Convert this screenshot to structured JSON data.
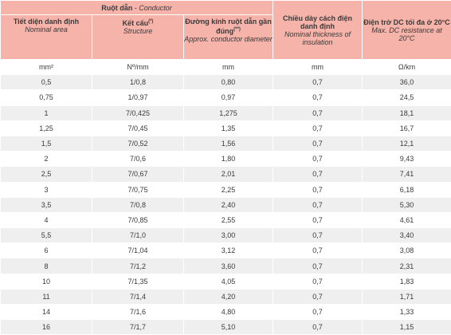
{
  "header": {
    "conductor_group": {
      "vi": "Ruột dẫn",
      "sep": " - ",
      "en": "Conductor"
    },
    "columns": [
      {
        "vi": "Tiết diện danh định",
        "en": "Nominal area",
        "sup": ""
      },
      {
        "vi": "Kết cấu",
        "en": "Structure",
        "sup": "(*)"
      },
      {
        "vi": "Đường kính ruột dẫn gần đúng",
        "en": "Approx. conductor diameter",
        "sup": "(**)"
      },
      {
        "vi": "Chiều dày cách điện danh định",
        "en": "Nominal thickness of insulation",
        "sup": ""
      },
      {
        "vi": "Điện trở DC tối đa ở 20°C",
        "en": "Max. DC resistance at 20°C",
        "sup": ""
      }
    ]
  },
  "units": [
    "mm²",
    "Nº/mm",
    "mm",
    "mm",
    "Ω/km"
  ],
  "rows": [
    [
      "0,5",
      "1/0,8",
      "0,80",
      "0,7",
      "36,0"
    ],
    [
      "0,75",
      "1/0,97",
      "0,97",
      "0,7",
      "24,5"
    ],
    [
      "1",
      "7/0,425",
      "1,275",
      "0,7",
      "18,1"
    ],
    [
      "1,25",
      "7/0,45",
      "1,35",
      "0,7",
      "16,7"
    ],
    [
      "1,5",
      "7/0,52",
      "1,56",
      "0,7",
      "12,1"
    ],
    [
      "2",
      "7/0,6",
      "1,80",
      "0,7",
      "9,43"
    ],
    [
      "2,5",
      "7/0,67",
      "2,01",
      "0,7",
      "7,41"
    ],
    [
      "3",
      "7/0,75",
      "2,25",
      "0,7",
      "6,18"
    ],
    [
      "3,5",
      "7/0,8",
      "2,40",
      "0,7",
      "5,30"
    ],
    [
      "4",
      "7/0,85",
      "2,55",
      "0,7",
      "4,61"
    ],
    [
      "5,5",
      "7/1,0",
      "3,00",
      "0,7",
      "3,40"
    ],
    [
      "6",
      "7/1,04",
      "3,12",
      "0,7",
      "3,08"
    ],
    [
      "8",
      "7/1,2",
      "3,60",
      "0,7",
      "2,31"
    ],
    [
      "10",
      "7/1,35",
      "4,05",
      "0,7",
      "1,83"
    ],
    [
      "11",
      "7/1,4",
      "4,20",
      "0,7",
      "1,71"
    ],
    [
      "14",
      "7/1,6",
      "4,80",
      "0,7",
      "1,33"
    ],
    [
      "16",
      "7/1,7",
      "5,10",
      "0,7",
      "1,15"
    ]
  ],
  "colors": {
    "header_bg": "#f6b3a9",
    "row_alt": "#efeff0",
    "text": "#3a3a3a"
  }
}
